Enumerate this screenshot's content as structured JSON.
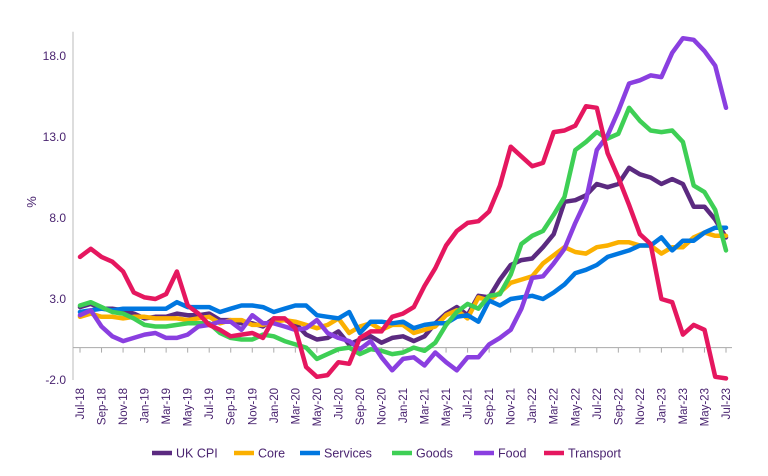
{
  "chart_data": {
    "type": "line",
    "title": "",
    "xlabel": "",
    "ylabel": "%",
    "ylim": [
      -2,
      19.5
    ],
    "yticks": [
      "-2.0",
      "3.0",
      "8.0",
      "13.0",
      "18.0"
    ],
    "ytick_values": [
      -2,
      3,
      8,
      13,
      18
    ],
    "grid": false,
    "legend_placement": "bottom",
    "x_start": "Jul-18",
    "x_end": "Jul-23",
    "xtick_labels": [
      "Jul-18",
      "Sep-18",
      "Nov-18",
      "Jan-19",
      "Mar-19",
      "May-19",
      "Jul-19",
      "Sep-19",
      "Nov-19",
      "Jan-20",
      "Mar-20",
      "May-20",
      "Jul-20",
      "Sep-20",
      "Nov-20",
      "Jan-21",
      "Mar-21",
      "May-21",
      "Jul-21",
      "Sep-21",
      "Nov-21",
      "Jan-22",
      "Mar-22",
      "May-22",
      "Jul-22",
      "Sep-22",
      "Nov-22",
      "Jan-23",
      "Mar-23",
      "May-23",
      "Jul-23"
    ],
    "series": [
      {
        "name": "UK CPI",
        "color": "#5b2a80",
        "values": [
          2.5,
          2.7,
          2.4,
          2.4,
          2.3,
          2.1,
          1.8,
          1.9,
          1.9,
          2.1,
          2.0,
          2.0,
          2.1,
          1.7,
          1.7,
          1.5,
          1.5,
          1.3,
          1.8,
          1.7,
          1.5,
          0.8,
          0.5,
          0.6,
          1.0,
          0.2,
          0.5,
          0.7,
          0.3,
          0.6,
          0.7,
          0.4,
          0.7,
          1.5,
          2.1,
          2.5,
          2.0,
          3.2,
          3.1,
          4.2,
          5.1,
          5.4,
          5.5,
          6.2,
          7.0,
          9.0,
          9.1,
          9.4,
          10.1,
          9.9,
          10.1,
          11.1,
          10.7,
          10.5,
          10.1,
          10.4,
          10.1,
          8.7,
          8.7,
          7.9,
          6.8
        ]
      },
      {
        "name": "Core",
        "color": "#fbb000",
        "values": [
          1.9,
          2.1,
          1.9,
          1.9,
          1.8,
          1.9,
          1.9,
          1.8,
          1.8,
          1.8,
          1.7,
          1.8,
          1.9,
          1.5,
          1.7,
          1.7,
          1.4,
          1.4,
          1.6,
          1.7,
          1.6,
          1.4,
          1.2,
          1.4,
          1.8,
          0.9,
          1.3,
          1.5,
          1.1,
          1.4,
          1.4,
          0.9,
          1.1,
          1.3,
          2.0,
          2.3,
          1.8,
          3.1,
          2.9,
          3.4,
          4.0,
          4.2,
          4.4,
          5.2,
          5.7,
          6.2,
          5.9,
          5.8,
          6.2,
          6.3,
          6.5,
          6.5,
          6.3,
          6.3,
          5.8,
          6.2,
          6.2,
          6.8,
          7.1,
          6.9,
          6.9
        ]
      },
      {
        "name": "Services",
        "color": "#0077e0",
        "values": [
          2.2,
          2.3,
          2.4,
          2.3,
          2.4,
          2.4,
          2.4,
          2.4,
          2.4,
          2.8,
          2.5,
          2.5,
          2.5,
          2.2,
          2.4,
          2.6,
          2.6,
          2.5,
          2.2,
          2.4,
          2.6,
          2.6,
          2.0,
          1.9,
          1.8,
          2.2,
          0.9,
          1.6,
          1.6,
          1.5,
          1.6,
          1.2,
          1.4,
          1.5,
          1.5,
          1.9,
          2.0,
          1.6,
          2.9,
          2.6,
          3.0,
          3.1,
          3.2,
          3.0,
          3.4,
          3.9,
          4.6,
          4.8,
          5.1,
          5.6,
          5.8,
          6.0,
          6.3,
          6.3,
          6.8,
          6.0,
          6.6,
          6.6,
          7.1,
          7.4,
          7.4
        ]
      },
      {
        "name": "Goods",
        "color": "#3ecf55",
        "values": [
          2.6,
          2.8,
          2.5,
          2.2,
          2.1,
          1.8,
          1.4,
          1.3,
          1.3,
          1.4,
          1.5,
          1.5,
          1.5,
          0.9,
          0.6,
          0.5,
          0.5,
          0.8,
          0.7,
          0.4,
          0.2,
          0.0,
          -0.7,
          -0.4,
          -0.1,
          0.0,
          -0.4,
          -0.1,
          -0.2,
          -0.4,
          -0.3,
          0.0,
          -0.2,
          0.3,
          1.4,
          2.2,
          2.7,
          2.4,
          3.2,
          3.3,
          4.5,
          6.4,
          6.9,
          7.2,
          8.2,
          9.3,
          12.2,
          12.7,
          13.3,
          12.9,
          13.2,
          14.8,
          14.0,
          13.4,
          13.3,
          13.4,
          12.7,
          10.0,
          9.6,
          8.5,
          6.0
        ]
      },
      {
        "name": "Food",
        "color": "#8a3fe0",
        "values": [
          2.0,
          2.3,
          1.3,
          0.7,
          0.4,
          0.6,
          0.8,
          0.9,
          0.6,
          0.6,
          0.8,
          1.3,
          1.4,
          1.6,
          1.6,
          1.1,
          2.0,
          1.5,
          1.5,
          1.3,
          1.1,
          1.2,
          1.7,
          0.9,
          0.6,
          0.4,
          -0.1,
          0.4,
          -0.6,
          -1.4,
          -0.7,
          -0.6,
          -1.1,
          -0.3,
          -0.9,
          -1.4,
          -0.6,
          -0.6,
          0.2,
          0.6,
          1.1,
          2.4,
          4.3,
          4.4,
          5.2,
          6.1,
          7.7,
          9.1,
          12.2,
          13.1,
          14.6,
          16.3,
          16.5,
          16.8,
          16.7,
          18.2,
          19.1,
          19.0,
          18.3,
          17.4,
          14.8
        ]
      },
      {
        "name": "Transport",
        "color": "#e5175f",
        "values": [
          5.6,
          6.1,
          5.6,
          5.3,
          4.7,
          3.4,
          3.1,
          3.0,
          3.3,
          4.7,
          2.6,
          2.1,
          1.4,
          1.1,
          0.7,
          0.8,
          0.9,
          0.6,
          1.8,
          1.8,
          1.2,
          -1.2,
          -1.8,
          -1.7,
          -0.9,
          -1.0,
          0.6,
          1.0,
          1.0,
          1.9,
          2.1,
          2.5,
          3.8,
          4.9,
          6.3,
          7.2,
          7.7,
          7.8,
          8.4,
          10.0,
          12.4,
          11.8,
          11.2,
          11.4,
          13.3,
          13.4,
          13.7,
          14.9,
          14.8,
          12.0,
          10.5,
          8.8,
          7.0,
          6.4,
          3.0,
          2.8,
          0.8,
          1.4,
          1.1,
          -1.8,
          -1.9
        ]
      }
    ]
  }
}
